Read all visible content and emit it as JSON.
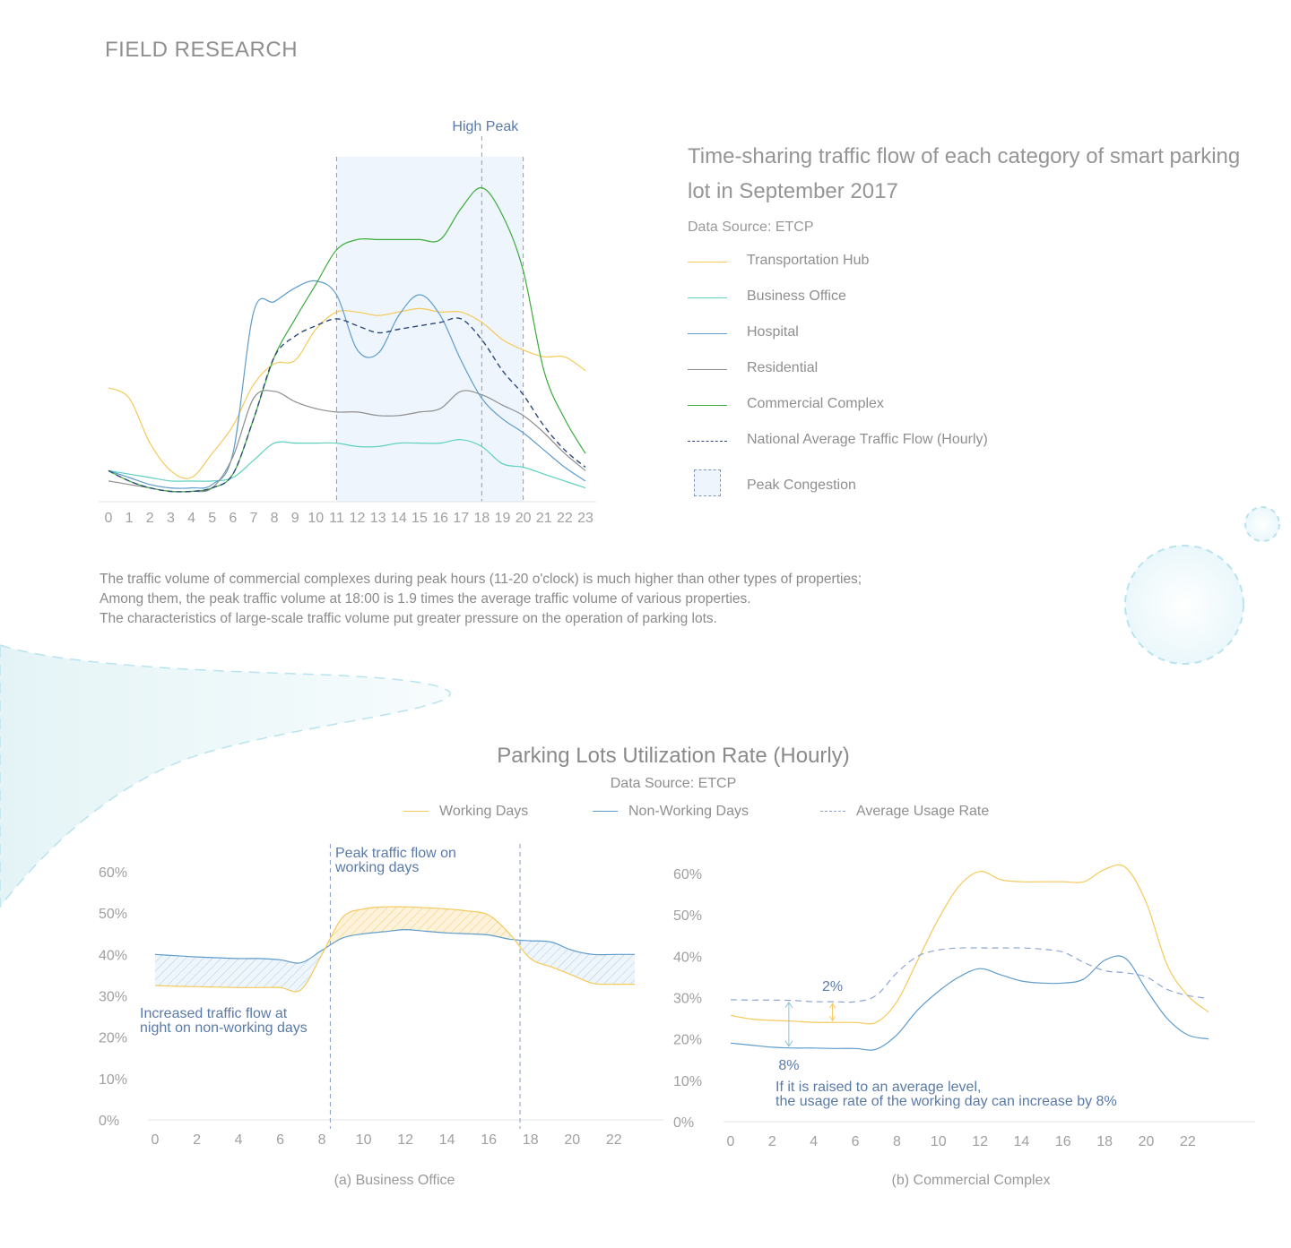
{
  "page": {
    "title": "FIELD RESEARCH"
  },
  "colors": {
    "transport": "#f5c95a",
    "business": "#5fd0c0",
    "hospital": "#5e9ccc",
    "residential": "#8e8e8e",
    "commercial": "#3bab3b",
    "average": "#2d4a7c",
    "peak_fill": "#eef5fc",
    "working": "#f5c95a",
    "nonworking": "#5e9ccc",
    "avg_rate": "#8aa6d6",
    "annotation": "#5a7aa8"
  },
  "chart1": {
    "title": "Time-sharing traffic flow of each category of smart parking lot in September 2017",
    "source": "Data Source: ETCP",
    "high_peak_label": "High Peak",
    "legend": [
      {
        "label": "Transportation Hub",
        "key": "transport",
        "dashed": false
      },
      {
        "label": "Business Office",
        "key": "business",
        "dashed": false
      },
      {
        "label": "Hospital",
        "key": "hospital",
        "dashed": false
      },
      {
        "label": "Residential",
        "key": "residential",
        "dashed": false
      },
      {
        "label": "Commercial Complex",
        "key": "commercial",
        "dashed": false
      },
      {
        "label": "National Average Traffic Flow (Hourly)",
        "key": "average",
        "dashed": true
      }
    ],
    "peak_legend_label": "Peak Congestion"
  },
  "description": [
    "The traffic volume of commercial complexes during peak hours (11-20 o'clock) is much higher than other types of properties;",
    "Among them, the peak traffic volume at 18:00 is 1.9 times the average traffic volume of various properties.",
    "The characteristics of large-scale traffic volume put greater pressure on the operation of parking lots."
  ],
  "chart2": {
    "title": "Parking Lots Utilization Rate (Hourly)",
    "source": "Data Source: ETCP",
    "legend": {
      "working": "Working Days",
      "nonworking": "Non-Working Days",
      "average": "Average Usage Rate"
    },
    "a_caption": "(a) Business Office",
    "a_peak_label_1": "Peak traffic flow on",
    "a_peak_label_2": "working days",
    "a_night_label_1": "Increased traffic flow at",
    "a_night_label_2": "night on non-working days",
    "b_caption": "(b) Commercial Complex",
    "b_gap_small": "2%",
    "b_gap_large": "8%",
    "b_note_1": "If it is raised to an average level,",
    "b_note_2": "the usage rate of the working day can increase by 8%"
  },
  "chart_data": [
    {
      "type": "line",
      "title": "Time-sharing traffic flow of each category of smart parking lot in September 2017",
      "x": [
        0,
        1,
        2,
        3,
        4,
        5,
        6,
        7,
        8,
        9,
        10,
        11,
        12,
        13,
        14,
        15,
        16,
        17,
        18,
        19,
        20,
        21,
        22,
        23
      ],
      "x_tick_labels": [
        "0",
        "1",
        "2",
        "3",
        "4",
        "5",
        "6",
        "7",
        "8",
        "9",
        "10",
        "11",
        "12",
        "13",
        "14",
        "15",
        "16",
        "17",
        "18",
        "19",
        "20",
        "21",
        "22",
        "23"
      ],
      "ylim": [
        0,
        100
      ],
      "y_axis_shown": false,
      "peak_band": [
        11,
        20
      ],
      "high_peak_hour": 18,
      "series": [
        {
          "name": "Transportation Hub",
          "key": "transport",
          "values": [
            33,
            30,
            17,
            9,
            7,
            14,
            22,
            34,
            40,
            41,
            50,
            55,
            55,
            54,
            55,
            56,
            55,
            55,
            52,
            47,
            44,
            42,
            42,
            38
          ]
        },
        {
          "name": "Business Office",
          "key": "business",
          "values": [
            9,
            8,
            7,
            6,
            6,
            6,
            7,
            12,
            17,
            17,
            17,
            17,
            16,
            16,
            17,
            17,
            17,
            18,
            16,
            11,
            10,
            8,
            6,
            4
          ]
        },
        {
          "name": "Hospital",
          "key": "hospital",
          "values": [
            9,
            7,
            5,
            4,
            4,
            5,
            14,
            55,
            58,
            62,
            64,
            60,
            44,
            43,
            54,
            60,
            54,
            41,
            30,
            24,
            20,
            15,
            10,
            6
          ]
        },
        {
          "name": "Residential",
          "key": "residential",
          "values": [
            6,
            5,
            4,
            3,
            3,
            4,
            13,
            30,
            32,
            29,
            27,
            26,
            26,
            25,
            25,
            26,
            27,
            32,
            31,
            28,
            25,
            20,
            14,
            9
          ]
        },
        {
          "name": "Commercial Complex",
          "key": "commercial",
          "values": [
            9,
            6,
            4,
            3,
            3,
            4,
            8,
            24,
            42,
            53,
            63,
            73,
            76,
            76,
            76,
            76,
            76,
            85,
            91,
            83,
            67,
            38,
            24,
            14
          ]
        },
        {
          "name": "National Average Traffic Flow (Hourly)",
          "key": "average",
          "values": [
            9,
            6,
            4,
            3,
            3,
            4,
            8,
            24,
            42,
            48,
            51,
            53,
            51,
            49,
            50,
            51,
            52,
            53,
            47,
            38,
            31,
            22,
            15,
            10
          ]
        }
      ]
    },
    {
      "type": "area",
      "title": "(a) Business Office",
      "x": [
        0,
        1,
        2,
        3,
        4,
        5,
        6,
        7,
        8,
        9,
        10,
        11,
        12,
        13,
        14,
        15,
        16,
        17,
        18,
        19,
        20,
        21,
        22,
        23
      ],
      "x_tick_labels": [
        "0",
        "2",
        "4",
        "6",
        "8",
        "10",
        "12",
        "14",
        "16",
        "18",
        "20",
        "22"
      ],
      "y_tick_labels": [
        "0%",
        "10%",
        "20%",
        "30%",
        "40%",
        "50%",
        "60%"
      ],
      "ylim": [
        0,
        60
      ],
      "peak_band": [
        8.4,
        17.5
      ],
      "series": [
        {
          "name": "Working Days",
          "key": "working",
          "values": [
            32.5,
            32.3,
            32.2,
            32.1,
            32.0,
            32.0,
            32.0,
            31.5,
            40.0,
            49.0,
            51.0,
            51.5,
            51.5,
            51.3,
            51.0,
            50.5,
            49.5,
            45.0,
            39.0,
            37.0,
            35.0,
            33.0,
            32.8,
            32.8
          ]
        },
        {
          "name": "Non-Working Days",
          "key": "nonworking",
          "values": [
            40.0,
            39.7,
            39.4,
            39.2,
            39.0,
            39.0,
            38.7,
            38.0,
            41.0,
            44.0,
            45.0,
            45.5,
            46.0,
            45.6,
            45.2,
            45.0,
            44.7,
            43.7,
            43.3,
            43.0,
            41.0,
            40.0,
            40.0,
            40.0
          ]
        }
      ]
    },
    {
      "type": "line",
      "title": "(b) Commercial Complex",
      "x": [
        0,
        1,
        2,
        3,
        4,
        5,
        6,
        7,
        8,
        9,
        10,
        11,
        12,
        13,
        14,
        15,
        16,
        17,
        18,
        19,
        20,
        21,
        22,
        23
      ],
      "x_tick_labels": [
        "0",
        "2",
        "4",
        "6",
        "8",
        "10",
        "12",
        "14",
        "16",
        "18",
        "20",
        "22"
      ],
      "y_tick_labels": [
        "0%",
        "10%",
        "20%",
        "30%",
        "40%",
        "50%",
        "60%"
      ],
      "ylim": [
        0,
        60
      ],
      "series": [
        {
          "name": "Working Days",
          "key": "working",
          "values": [
            25.7,
            24.8,
            24.5,
            24.3,
            24.0,
            24.0,
            24.0,
            24.0,
            29.0,
            39.0,
            49.0,
            57.0,
            60.5,
            58.5,
            58.0,
            58.0,
            58.0,
            58.0,
            61.0,
            61.5,
            53.0,
            38.0,
            30.5,
            26.5
          ]
        },
        {
          "name": "Non-Working Days",
          "key": "nonworking",
          "values": [
            19.0,
            18.5,
            18.0,
            17.8,
            17.8,
            17.7,
            17.7,
            17.5,
            21.0,
            27.0,
            31.5,
            35.0,
            37.0,
            35.5,
            34.0,
            33.5,
            33.5,
            34.5,
            39.0,
            39.5,
            32.0,
            25.0,
            21.0,
            20.0
          ]
        },
        {
          "name": "Average Usage Rate",
          "key": "avg_rate",
          "values": [
            29.5,
            29.4,
            29.4,
            29.3,
            29.0,
            29.0,
            29.0,
            30.5,
            36.0,
            40.0,
            41.5,
            42.0,
            42.0,
            42.0,
            42.0,
            41.7,
            41.0,
            38.5,
            36.5,
            36.0,
            35.0,
            32.0,
            30.5,
            29.8
          ],
          "dashed": true
        }
      ]
    }
  ]
}
